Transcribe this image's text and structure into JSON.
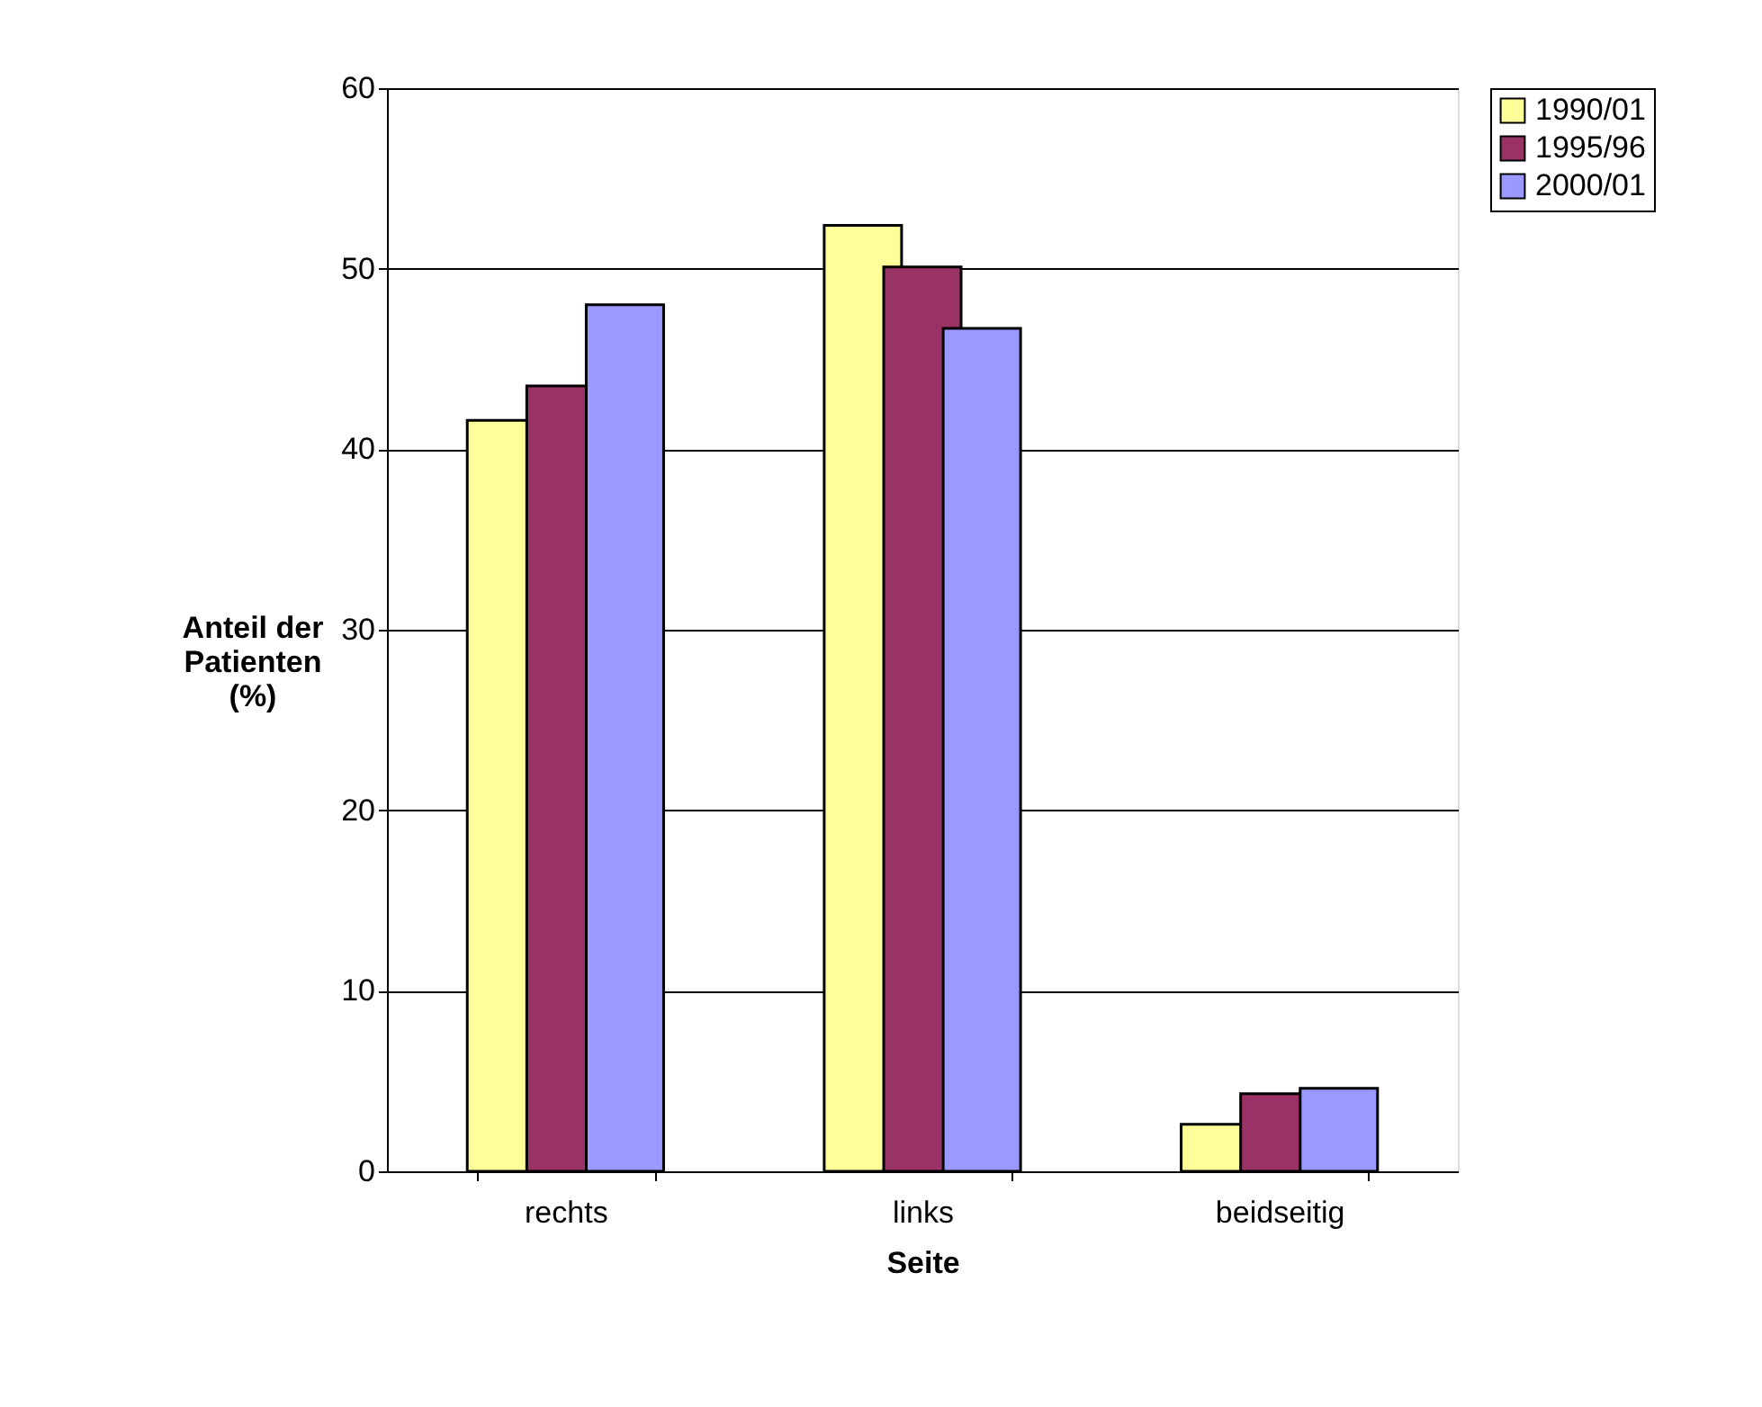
{
  "chart_data": {
    "type": "bar",
    "xlabel": "Seite",
    "ylabel": "Anteil der\nPatienten\n(%)",
    "categories": [
      "rechts",
      "links",
      "beidseitig"
    ],
    "series": [
      {
        "name": "1990/01",
        "color": "#ffff99",
        "values": [
          41.6,
          52.4,
          2.6
        ]
      },
      {
        "name": "1995/96",
        "color": "#993366",
        "values": [
          43.5,
          50.1,
          4.3
        ]
      },
      {
        "name": "2000/01",
        "color": "#9999ff",
        "values": [
          48.0,
          46.7,
          4.6
        ]
      }
    ],
    "ylim": [
      0,
      60
    ],
    "yticks": [
      0,
      10,
      20,
      30,
      40,
      50,
      60
    ],
    "grid": "y",
    "legend": "right"
  }
}
